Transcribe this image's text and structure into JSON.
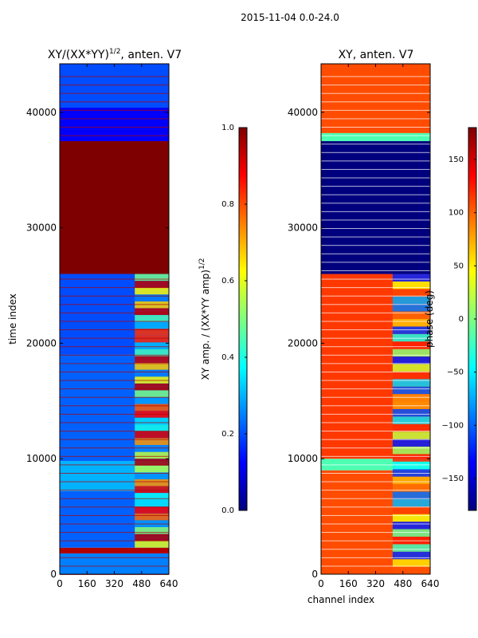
{
  "figure_title": "2015-11-04 0.0-24.0",
  "colors": {
    "jet_stops": [
      "#00007f",
      "#0000ff",
      "#007fff",
      "#00ffff",
      "#7fff7f",
      "#ffff00",
      "#ff7f00",
      "#ff0000",
      "#7f0000"
    ]
  },
  "chart_data": [
    {
      "type": "heatmap",
      "title": "XY/(XX*YY)",
      "title_superscript": "1/2",
      "title_suffix": ", anten. V7",
      "xlabel": "",
      "ylabel": "time index",
      "xticks": [
        0,
        160,
        320,
        480,
        640
      ],
      "yticks": [
        0,
        10000,
        20000,
        30000,
        40000
      ],
      "xlim": [
        0,
        640
      ],
      "ylim": [
        0,
        44200
      ],
      "colorbar": {
        "label": "XY amp. / (XX*YY amp)",
        "label_superscript": "1/2",
        "range": [
          0.0,
          1.0
        ],
        "ticks": [
          "0.0",
          "0.2",
          "0.4",
          "0.6",
          "0.8",
          "1.0"
        ],
        "tick_values": [
          0.0,
          0.2,
          0.4,
          0.6,
          0.8,
          1.0
        ]
      },
      "time_bands": [
        {
          "from": 0,
          "to": 1800,
          "level": 0.25
        },
        {
          "from": 1800,
          "to": 2300,
          "level": 0.95
        },
        {
          "from": 2300,
          "to": 7200,
          "level": 0.22
        },
        {
          "from": 7200,
          "to": 9800,
          "level": 0.3
        },
        {
          "from": 9800,
          "to": 19000,
          "level": 0.22
        },
        {
          "from": 19000,
          "to": 26000,
          "level": 0.2
        },
        {
          "from": 26000,
          "to": 37500,
          "level": 1.0
        },
        {
          "from": 37500,
          "to": 40400,
          "level": 0.12
        },
        {
          "from": 40400,
          "to": 44200,
          "level": 0.2
        }
      ],
      "channel_bands": [
        {
          "from": 440,
          "to": 640,
          "level": 0.6,
          "time_from": 2300,
          "time_to": 26000
        }
      ]
    },
    {
      "type": "heatmap",
      "title": "XY, anten. V7",
      "xlabel": "channel index",
      "ylabel": "",
      "xticks": [
        0,
        160,
        320,
        480,
        640
      ],
      "yticks": [
        0,
        10000,
        20000,
        30000,
        40000
      ],
      "xlim": [
        0,
        640
      ],
      "ylim": [
        0,
        44200
      ],
      "colorbar": {
        "label": "phase (deg)",
        "range": [
          -180,
          180
        ],
        "ticks": [
          "−150",
          "−100",
          "−50",
          "0",
          "50",
          "100",
          "150"
        ],
        "tick_values": [
          -150,
          -100,
          -50,
          0,
          50,
          100,
          150
        ]
      },
      "time_bands": [
        {
          "from": 0,
          "to": 9000,
          "level": 0.8
        },
        {
          "from": 9000,
          "to": 10000,
          "level": 0.45
        },
        {
          "from": 10000,
          "to": 26000,
          "level": 0.82
        },
        {
          "from": 26000,
          "to": 37500,
          "level": 0.0
        },
        {
          "from": 37500,
          "to": 38200,
          "level": 0.45
        },
        {
          "from": 38200,
          "to": 44200,
          "level": 0.8
        }
      ],
      "channel_bands": [
        {
          "from": 420,
          "to": 640,
          "level": 0.5,
          "time_from": 0,
          "time_to": 26000
        }
      ]
    }
  ]
}
